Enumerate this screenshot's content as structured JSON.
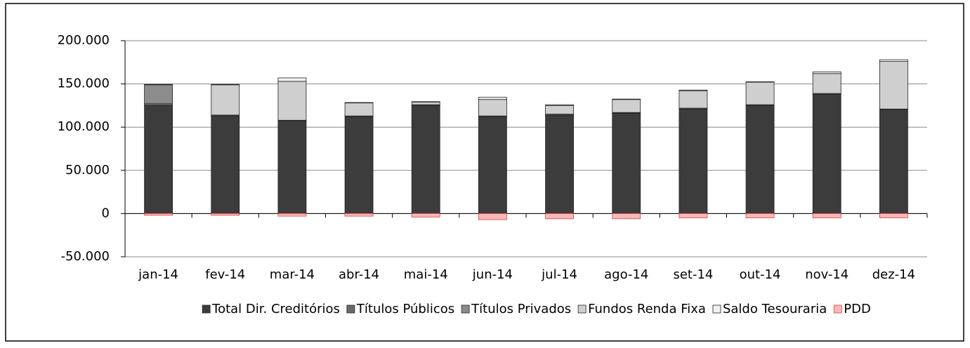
{
  "chart_data": {
    "type": "stacked_bar",
    "categories": [
      "jan-14",
      "fev-14",
      "mar-14",
      "abr-14",
      "mai-14",
      "jun-14",
      "jul-14",
      "ago-14",
      "set-14",
      "out-14",
      "nov-14",
      "dez-14"
    ],
    "series": [
      {
        "name": "Total Dir. Creditórios",
        "color": "#3c3c3c",
        "values": [
          125000,
          113000,
          107000,
          112000,
          125000,
          112000,
          114000,
          116000,
          121000,
          125000,
          138000,
          120000
        ]
      },
      {
        "name": "Títulos Públicos",
        "color": "#6a6a6a",
        "values": [
          2000,
          1000,
          1000,
          1000,
          1000,
          1000,
          1000,
          1000,
          1000,
          1000,
          1000,
          1000
        ]
      },
      {
        "name": "Títulos Privados",
        "color": "#8c8c8c",
        "values": [
          22000,
          0,
          0,
          0,
          0,
          0,
          0,
          0,
          0,
          0,
          0,
          0
        ]
      },
      {
        "name": "Fundos Renda Fixa",
        "color": "#cfcfcf",
        "values": [
          0,
          35000,
          45000,
          15000,
          3000,
          19000,
          10000,
          15000,
          20000,
          26000,
          23000,
          55000
        ]
      },
      {
        "name": "Saldo Tesouraria",
        "color": "#f2f2f2",
        "values": [
          500,
          500,
          4000,
          500,
          500,
          2500,
          1000,
          500,
          1000,
          500,
          2000,
          2000
        ]
      },
      {
        "name": "PDD",
        "color": "#f6b8b8",
        "values": [
          -2000,
          -2000,
          -3000,
          -3000,
          -4000,
          -7000,
          -6000,
          -6000,
          -5000,
          -5000,
          -5000,
          -5000
        ]
      }
    ],
    "ylim": [
      -50000,
      200000
    ],
    "yticks": [
      {
        "value": -50000,
        "label": "-50.000"
      },
      0,
      {
        "value": 50000,
        "label": "50.000"
      },
      {
        "value": 100000,
        "label": "100.000"
      },
      {
        "value": 150000,
        "label": "150.000"
      },
      {
        "value": 200000,
        "label": "200.000"
      }
    ],
    "grid": true,
    "legend": "bottom"
  }
}
